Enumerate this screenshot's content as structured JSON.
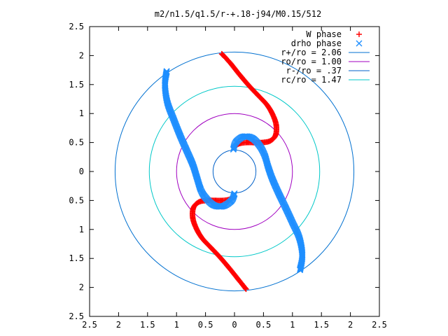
{
  "chart_data": {
    "type": "scatter",
    "title": "m2/n1.5/q1.5/r-+.18-j94/M0.15/512",
    "xlim": [
      -2.5,
      2.5
    ],
    "ylim": [
      -2.5,
      2.5
    ],
    "xticks": [
      -2.5,
      -2,
      -1.5,
      -1,
      -0.5,
      0,
      0.5,
      1,
      1.5,
      2,
      2.5
    ],
    "yticks": [
      -2.5,
      -2,
      -1.5,
      -1,
      -0.5,
      0,
      0.5,
      1,
      1.5,
      2,
      2.5
    ],
    "xtick_labels": [
      "2.5",
      "2",
      "1.5",
      "1",
      "0.5",
      "0",
      "0.5",
      "1",
      "1.5",
      "2",
      "2.5"
    ],
    "ytick_labels": [
      "2.5",
      "2",
      "1.5",
      "1",
      "0.5",
      "0",
      "0.5",
      "1",
      "1.5",
      "2",
      "2.5"
    ],
    "grid": false,
    "legend_position": "top-right",
    "series": [
      {
        "name": "W phase",
        "marker": "plus",
        "color": "#ff0000",
        "arms": [
          [
            [
              -0.22,
              2.03
            ],
            [
              -0.08,
              1.88
            ],
            [
              0.08,
              1.68
            ],
            [
              0.25,
              1.48
            ],
            [
              0.42,
              1.3
            ],
            [
              0.56,
              1.15
            ],
            [
              0.66,
              0.98
            ],
            [
              0.72,
              0.8
            ],
            [
              0.71,
              0.63
            ],
            [
              0.62,
              0.53
            ],
            [
              0.48,
              0.5
            ],
            [
              0.35,
              0.5
            ],
            [
              0.2,
              0.5
            ],
            [
              0.08,
              0.48
            ],
            [
              0.0,
              0.43
            ]
          ],
          [
            [
              0.2,
              -2.03
            ],
            [
              0.08,
              -1.88
            ],
            [
              -0.08,
              -1.68
            ],
            [
              -0.25,
              -1.48
            ],
            [
              -0.42,
              -1.3
            ],
            [
              -0.56,
              -1.15
            ],
            [
              -0.66,
              -0.98
            ],
            [
              -0.72,
              -0.8
            ],
            [
              -0.71,
              -0.63
            ],
            [
              -0.62,
              -0.53
            ],
            [
              -0.48,
              -0.5
            ],
            [
              -0.35,
              -0.5
            ],
            [
              -0.2,
              -0.5
            ],
            [
              -0.08,
              -0.48
            ],
            [
              0.0,
              -0.43
            ]
          ]
        ]
      },
      {
        "name": "drho phase",
        "marker": "cross",
        "color": "#1f8fff",
        "arms": [
          [
            [
              -1.17,
              1.73
            ],
            [
              -1.2,
              1.5
            ],
            [
              -1.16,
              1.2
            ],
            [
              -1.05,
              0.9
            ],
            [
              -0.93,
              0.6
            ],
            [
              -0.82,
              0.35
            ],
            [
              -0.72,
              0.12
            ],
            [
              -0.65,
              -0.1
            ],
            [
              -0.58,
              -0.32
            ],
            [
              -0.5,
              -0.45
            ],
            [
              -0.36,
              -0.58
            ],
            [
              -0.2,
              -0.6
            ],
            [
              -0.05,
              -0.5
            ],
            [
              0.0,
              -0.38
            ]
          ],
          [
            [
              1.13,
              -1.7
            ],
            [
              1.17,
              -1.45
            ],
            [
              1.12,
              -1.15
            ],
            [
              1.0,
              -0.88
            ],
            [
              0.87,
              -0.6
            ],
            [
              0.75,
              -0.35
            ],
            [
              0.65,
              -0.12
            ],
            [
              0.58,
              0.08
            ],
            [
              0.52,
              0.28
            ],
            [
              0.43,
              0.45
            ],
            [
              0.3,
              0.58
            ],
            [
              0.15,
              0.6
            ],
            [
              0.02,
              0.5
            ],
            [
              -0.02,
              0.38
            ]
          ]
        ]
      },
      {
        "name": "r+/ro = 2.06",
        "type": "circle",
        "radius": 2.06,
        "color": "#0070d0"
      },
      {
        "name": "ro/ro = 1.00",
        "type": "circle",
        "radius": 1.0,
        "color": "#a000c0"
      },
      {
        "name": "r-/ro = .37",
        "type": "circle",
        "radius": 0.37,
        "color": "#0060c8"
      },
      {
        "name": "rc/ro = 1.47",
        "type": "circle",
        "radius": 1.47,
        "color": "#00c8c8"
      }
    ]
  }
}
